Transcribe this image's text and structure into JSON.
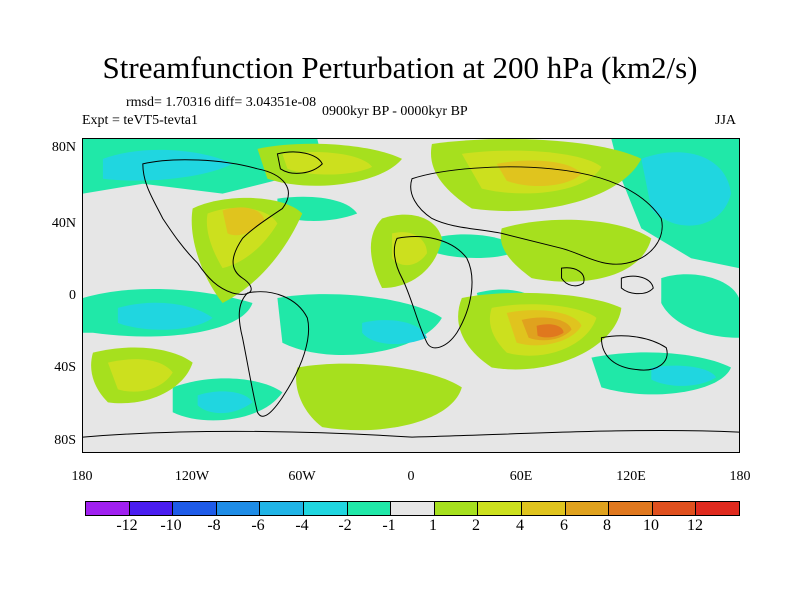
{
  "title": "Streamfunction Perturbation at 200 hPa (km2/s)",
  "stats": "rmsd= 1.70316 diff= 3.04351e-08",
  "experiment": "Expt = teVT5-tevta1",
  "period": "0900kyr BP - 0000kyr BP",
  "season": "JJA",
  "y_ticks": [
    "80N",
    "40N",
    "0",
    "40S",
    "80S"
  ],
  "x_ticks": [
    "180",
    "120W",
    "60W",
    "0",
    "60E",
    "120E",
    "180"
  ],
  "colorbar": {
    "colors": [
      "#a020f0",
      "#4a1df0",
      "#1e5be8",
      "#1e8ce6",
      "#20b4e6",
      "#20d6e0",
      "#20e8a8",
      "#e6e6e6",
      "#a6e01e",
      "#cce01e",
      "#e0c41e",
      "#e0a21e",
      "#e0781e",
      "#e0501e",
      "#e02a1e"
    ],
    "labels": [
      "-12",
      "-10",
      "-8",
      "-6",
      "-4",
      "-2",
      "-1",
      "1",
      "2",
      "4",
      "6",
      "8",
      "10",
      "12"
    ]
  }
}
